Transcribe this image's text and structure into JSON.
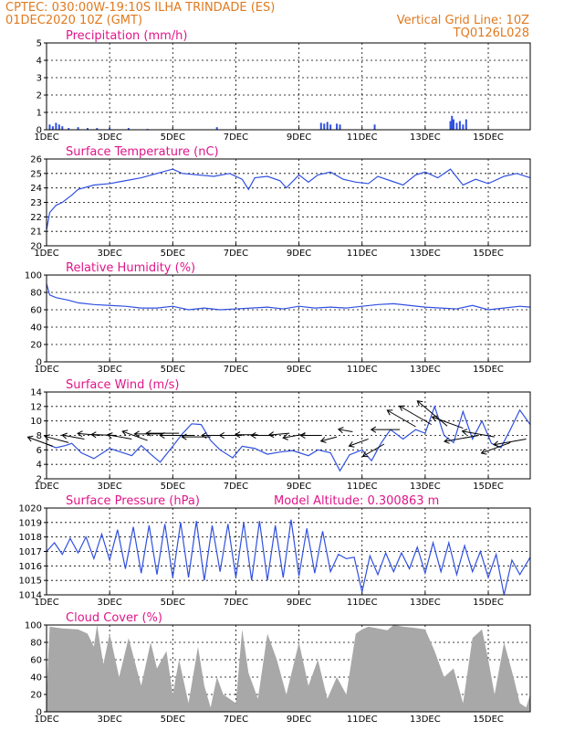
{
  "header": {
    "line1_left": "CPTEC:   030:00W-19:10S  ILHA TRINDADE (ES)",
    "line2_left": "01DEC2020 10Z (GMT)",
    "line2_right": "Vertical Grid Line: 10Z",
    "line3_right": "TQ0126L028"
  },
  "colors": {
    "header": "#e07a1f",
    "title": "#e0168a",
    "line": "#3050e0",
    "cloud": "#a8a8a8",
    "wind_arrow": "#000000"
  },
  "x_ticks": [
    "1DEC",
    "3DEC",
    "5DEC",
    "7DEC",
    "9DEC",
    "11DEC",
    "13DEC",
    "15DEC"
  ],
  "chart_data": [
    {
      "id": "precip",
      "type": "bar",
      "title": "Precipitation (mm/h)",
      "xlim": [
        0,
        15.33
      ],
      "ylim": [
        0,
        5
      ],
      "yticks": [
        0,
        1,
        2,
        3,
        4,
        5
      ],
      "x": [
        0.1,
        0.2,
        0.3,
        0.4,
        0.5,
        0.7,
        1.0,
        1.3,
        1.6,
        2.0,
        2.6,
        3.2,
        5.4,
        8.7,
        8.8,
        8.9,
        9.0,
        9.2,
        9.3,
        10.4,
        12.8,
        12.85,
        12.9,
        13.0,
        13.1,
        13.2,
        13.3
      ],
      "values": [
        0.3,
        0.2,
        0.4,
        0.3,
        0.2,
        0.1,
        0.15,
        0.1,
        0.1,
        0.1,
        0.1,
        0.05,
        0.15,
        0.4,
        0.35,
        0.45,
        0.3,
        0.35,
        0.3,
        0.3,
        0.5,
        0.8,
        0.6,
        0.4,
        0.5,
        0.3,
        0.6
      ]
    },
    {
      "id": "temp",
      "type": "line",
      "title": "Surface Temperature (nC)",
      "xlim": [
        0,
        15.33
      ],
      "ylim": [
        20,
        26
      ],
      "yticks": [
        20,
        21,
        22,
        23,
        24,
        25,
        26
      ],
      "x": [
        0,
        0.1,
        0.3,
        0.5,
        0.8,
        1.0,
        1.5,
        2.0,
        2.5,
        3.0,
        3.5,
        4.0,
        4.3,
        4.8,
        5.3,
        5.8,
        6.2,
        6.4,
        6.6,
        7.0,
        7.4,
        7.6,
        8.0,
        8.3,
        8.6,
        9.0,
        9.4,
        9.8,
        10.2,
        10.5,
        10.9,
        11.3,
        11.7,
        12.0,
        12.4,
        12.8,
        13.2,
        13.6,
        14.0,
        14.5,
        14.9,
        15.33
      ],
      "values": [
        21.1,
        22.3,
        22.8,
        23.0,
        23.5,
        23.9,
        24.2,
        24.3,
        24.5,
        24.7,
        25.0,
        25.3,
        25.0,
        24.9,
        24.8,
        25.0,
        24.6,
        23.9,
        24.7,
        24.8,
        24.5,
        24.0,
        24.9,
        24.4,
        24.9,
        25.1,
        24.6,
        24.4,
        24.3,
        24.8,
        24.5,
        24.2,
        24.9,
        25.1,
        24.7,
        25.3,
        24.2,
        24.6,
        24.3,
        24.8,
        25.0,
        24.7
      ]
    },
    {
      "id": "rh",
      "type": "line",
      "title": "Relative Humidity (%)",
      "xlim": [
        0,
        15.33
      ],
      "ylim": [
        0,
        100
      ],
      "yticks": [
        0,
        20,
        40,
        60,
        80,
        100
      ],
      "x": [
        0,
        0.1,
        0.3,
        0.7,
        1.0,
        1.5,
        2.0,
        2.5,
        3.0,
        3.5,
        4.0,
        4.5,
        5.0,
        5.5,
        6.0,
        6.5,
        7.0,
        7.5,
        8.0,
        8.5,
        9.0,
        9.5,
        10.0,
        10.5,
        11.0,
        11.5,
        12.0,
        12.5,
        13.0,
        13.5,
        14.0,
        14.5,
        15.0,
        15.33
      ],
      "values": [
        90,
        77,
        74,
        71,
        68,
        66,
        65,
        64,
        62,
        62,
        64,
        60,
        62,
        60,
        61,
        62,
        63,
        61,
        64,
        62,
        63,
        62,
        64,
        66,
        67,
        65,
        63,
        62,
        61,
        65,
        60,
        62,
        64,
        63
      ]
    },
    {
      "id": "wind",
      "type": "line",
      "title": "Surface Wind (m/s)",
      "xlim": [
        0,
        15.33
      ],
      "ylim": [
        2,
        14
      ],
      "yticks": [
        2,
        4,
        6,
        8,
        10,
        12,
        14
      ],
      "x": [
        0,
        0.3,
        0.6,
        0.8,
        1.1,
        1.5,
        2.0,
        2.5,
        2.7,
        3.0,
        3.3,
        3.6,
        4.0,
        4.3,
        4.6,
        4.9,
        5.2,
        5.5,
        5.9,
        6.2,
        6.6,
        7.0,
        7.4,
        7.8,
        8.3,
        8.6,
        9.0,
        9.3,
        9.6,
        10.0,
        10.3,
        10.6,
        10.9,
        11.3,
        11.7,
        12.0,
        12.3,
        12.6,
        12.9,
        13.2,
        13.5,
        13.8,
        14.1,
        14.4,
        14.7,
        15.0,
        15.33
      ],
      "values": [
        6.8,
        6.3,
        6.6,
        6.9,
        5.6,
        4.8,
        6.2,
        5.5,
        5.2,
        6.6,
        5.4,
        4.3,
        6.5,
        8.2,
        9.6,
        9.5,
        7.3,
        6.0,
        4.9,
        6.5,
        6.2,
        5.4,
        5.7,
        5.9,
        5.2,
        6.0,
        5.6,
        3.1,
        5.3,
        6.0,
        4.5,
        6.9,
        8.8,
        7.5,
        8.8,
        8.3,
        12.0,
        8.0,
        7.0,
        11.3,
        7.5,
        10.0,
        6.9,
        6.3,
        8.8,
        11.5,
        9.5
      ]
    },
    {
      "id": "pressure",
      "type": "line",
      "title": "Surface Pressure (hPa)",
      "subtitle": "Model Altitude: 0.300863 m",
      "xlim": [
        0,
        15.33
      ],
      "ylim": [
        1014,
        1020
      ],
      "yticks": [
        1014,
        1015,
        1016,
        1017,
        1018,
        1019,
        1020
      ],
      "x": [
        0,
        0.25,
        0.5,
        0.75,
        1.0,
        1.25,
        1.5,
        1.75,
        2.0,
        2.25,
        2.5,
        2.75,
        3.0,
        3.25,
        3.5,
        3.75,
        4.0,
        4.25,
        4.5,
        4.75,
        5.0,
        5.25,
        5.5,
        5.75,
        6.0,
        6.25,
        6.5,
        6.75,
        7.0,
        7.25,
        7.5,
        7.75,
        8.0,
        8.25,
        8.5,
        8.75,
        9.0,
        9.25,
        9.5,
        9.75,
        10.0,
        10.25,
        10.5,
        10.75,
        11.0,
        11.25,
        11.5,
        11.75,
        12.0,
        12.25,
        12.5,
        12.75,
        13.0,
        13.25,
        13.5,
        13.75,
        14.0,
        14.25,
        14.5,
        14.75,
        15.0,
        15.33
      ],
      "values": [
        1017.0,
        1017.6,
        1016.8,
        1017.9,
        1016.9,
        1018.0,
        1016.5,
        1018.2,
        1016.4,
        1018.5,
        1015.8,
        1018.7,
        1015.5,
        1018.8,
        1015.4,
        1018.9,
        1015.2,
        1019.0,
        1015.2,
        1019.1,
        1015.0,
        1018.8,
        1015.6,
        1018.9,
        1015.2,
        1019.0,
        1015.0,
        1019.1,
        1015.0,
        1018.8,
        1015.2,
        1019.2,
        1015.3,
        1018.6,
        1015.5,
        1018.4,
        1015.6,
        1016.8,
        1016.5,
        1016.6,
        1014.2,
        1016.7,
        1015.4,
        1016.9,
        1015.6,
        1016.9,
        1015.8,
        1017.3,
        1015.5,
        1017.6,
        1015.6,
        1017.6,
        1015.4,
        1017.4,
        1015.6,
        1017.0,
        1015.2,
        1016.8,
        1014.0,
        1016.4,
        1015.4,
        1016.6
      ]
    },
    {
      "id": "cloud",
      "type": "area",
      "title": "Cloud Cover (%)",
      "xlim": [
        0,
        15.33
      ],
      "ylim": [
        0,
        100
      ],
      "yticks": [
        0,
        20,
        40,
        60,
        80,
        100
      ],
      "x": [
        0,
        0.1,
        0.5,
        1.0,
        1.3,
        1.5,
        1.6,
        1.8,
        2.0,
        2.3,
        2.6,
        3.0,
        3.3,
        3.5,
        3.8,
        4.0,
        4.2,
        4.5,
        4.8,
        5.0,
        5.2,
        5.4,
        5.6,
        6.0,
        6.2,
        6.4,
        6.7,
        7.0,
        7.3,
        7.6,
        8.0,
        8.3,
        8.6,
        8.9,
        9.2,
        9.5,
        9.8,
        10.0,
        10.2,
        10.5,
        10.8,
        11.0,
        11.3,
        11.6,
        12.0,
        12.3,
        12.6,
        12.9,
        13.2,
        13.5,
        13.8,
        14.0,
        14.2,
        14.5,
        14.8,
        15.0,
        15.2,
        15.33
      ],
      "values": [
        20,
        98,
        96,
        95,
        90,
        75,
        100,
        55,
        90,
        40,
        85,
        30,
        80,
        50,
        70,
        20,
        60,
        10,
        75,
        30,
        5,
        40,
        20,
        10,
        95,
        45,
        15,
        90,
        60,
        20,
        80,
        30,
        60,
        15,
        40,
        20,
        90,
        95,
        98,
        96,
        94,
        100,
        98,
        97,
        95,
        70,
        40,
        50,
        10,
        85,
        95,
        60,
        20,
        80,
        40,
        10,
        5,
        20
      ]
    }
  ],
  "wind_vectors": {
    "x": [
      0.2,
      0.7,
      1.2,
      1.7,
      2.2,
      2.7,
      3.2,
      3.7,
      4.2,
      4.7,
      5.2,
      5.7,
      6.2,
      6.7,
      7.2,
      7.7,
      8.2,
      8.7,
      9.2,
      9.7,
      10.2,
      10.7,
      11.2,
      11.7,
      12.2,
      12.7,
      13.2,
      13.7,
      14.2,
      14.7,
      15.2
    ],
    "y": [
      6.5,
      7.0,
      7.5,
      8.0,
      8.0,
      7.5,
      7.3,
      8.2,
      8.3,
      8.0,
      7.8,
      8.0,
      8.0,
      8.1,
      8.0,
      8.3,
      8.2,
      8.0,
      7.8,
      8.5,
      7.5,
      6.8,
      8.8,
      9.2,
      9.5,
      9.3,
      9.0,
      8.0,
      7.8,
      7.0,
      7.5
    ],
    "dir_deg": [
      160,
      165,
      170,
      175,
      178,
      170,
      160,
      180,
      180,
      180,
      180,
      180,
      180,
      180,
      180,
      185,
      190,
      180,
      195,
      170,
      200,
      210,
      180,
      150,
      150,
      140,
      160,
      190,
      170,
      200,
      190
    ],
    "speed": [
      6.5,
      6.0,
      5.5,
      5.5,
      6.0,
      6.0,
      6.5,
      7.0,
      8.0,
      8.5,
      7.0,
      6.0,
      5.5,
      5.5,
      5.5,
      5.0,
      5.5,
      5.0,
      4.0,
      3.5,
      5.0,
      6.0,
      7.0,
      8.0,
      9.0,
      9.5,
      8.0,
      8.5,
      8.0,
      7.5,
      8.0
    ]
  }
}
